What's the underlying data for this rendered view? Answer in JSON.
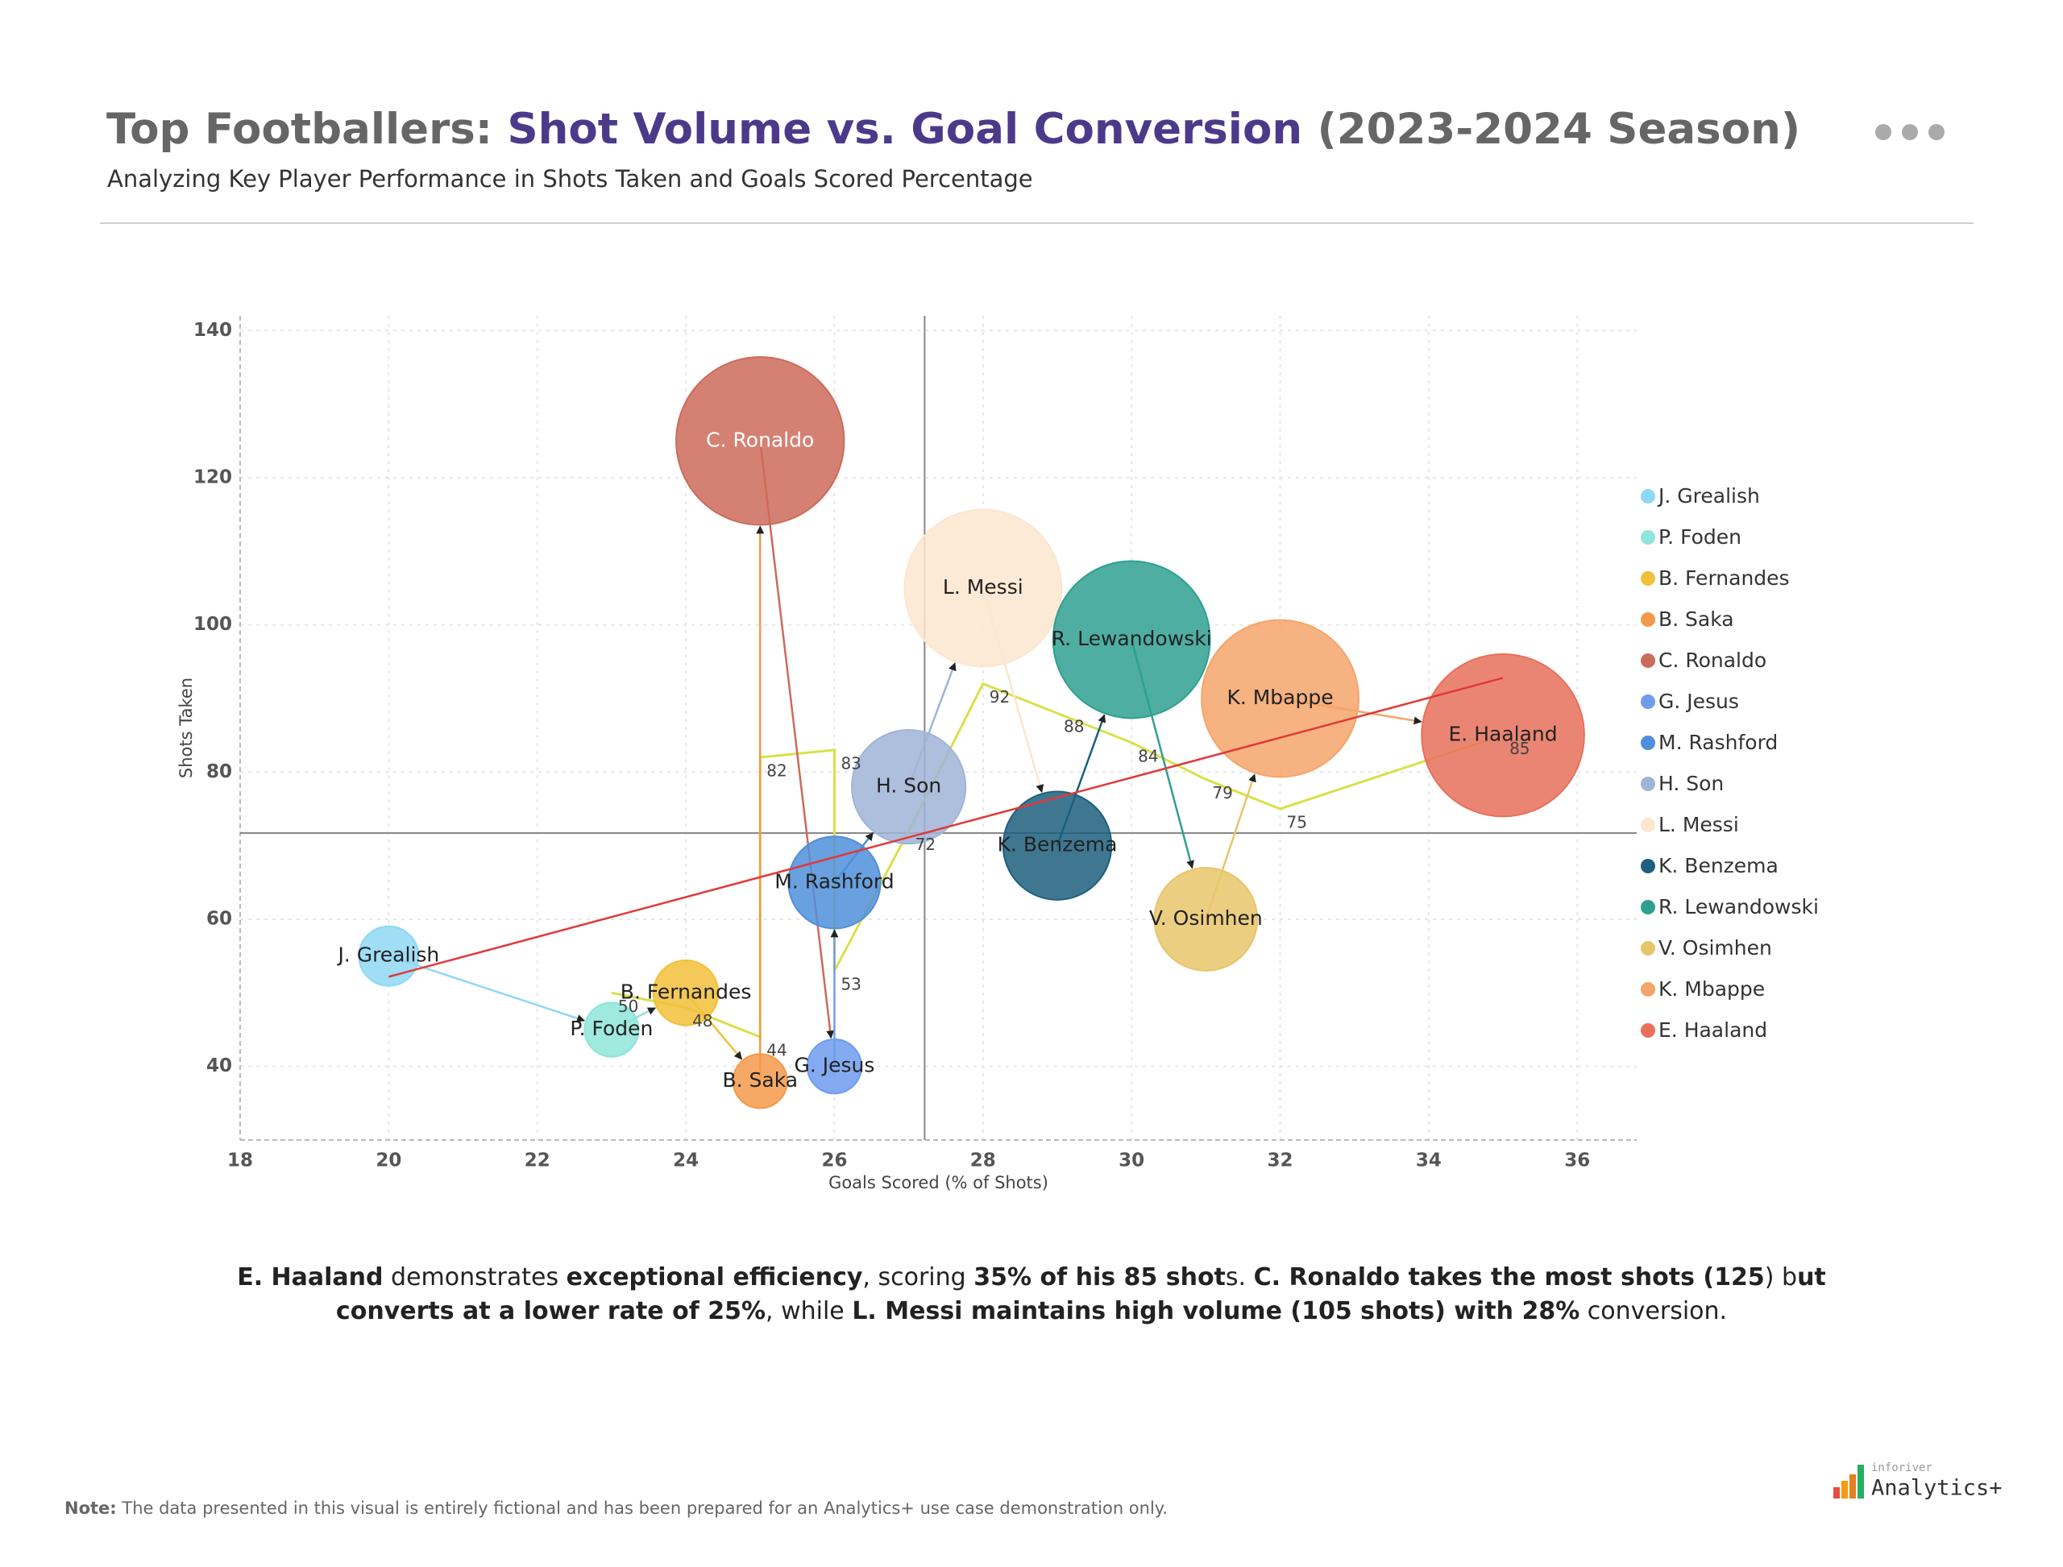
{
  "chart_data": {
    "type": "bubble",
    "title_parts": [
      {
        "text": "Top Footballers: ",
        "color": "#666666"
      },
      {
        "text": "Shot Volume vs. Goal Conversion",
        "color": "#4b3a8a"
      },
      {
        "text": " (2023-2024 Season)",
        "color": "#666666"
      }
    ],
    "subtitle": "Analyzing Key Player Performance in Shots Taken and Goals Scored Percentage",
    "x_label": "Goals Scored (% of Shots)",
    "y_label": "Shots Taken",
    "xlim": [
      18,
      36.8
    ],
    "ylim": [
      30,
      142
    ],
    "xticks": [
      18,
      20,
      22,
      24,
      26,
      28,
      30,
      32,
      34,
      36
    ],
    "yticks": [
      40,
      60,
      80,
      100,
      120,
      140
    ],
    "grid": true,
    "series": [
      {
        "name": "J. Grealish",
        "color": "#8fd8f5",
        "x": [
          20
        ],
        "values": [
          55
        ],
        "sizes": [
          11
        ]
      },
      {
        "name": "P. Foden",
        "color": "#8ee5d8",
        "x": [
          23
        ],
        "values": [
          45
        ],
        "sizes": [
          10
        ]
      },
      {
        "name": "B. Fernandes",
        "color": "#f2c03a",
        "x": [
          24
        ],
        "values": [
          50
        ],
        "sizes": [
          12
        ]
      },
      {
        "name": "B. Saka",
        "color": "#f39a4a",
        "x": [
          25
        ],
        "values": [
          38
        ],
        "sizes": [
          10
        ]
      },
      {
        "name": "C. Ronaldo",
        "color": "#cc6b5a",
        "x": [
          25
        ],
        "values": [
          125
        ],
        "sizes": [
          31
        ]
      },
      {
        "name": "G. Jesus",
        "color": "#6e9cef",
        "x": [
          26
        ],
        "values": [
          40
        ],
        "sizes": [
          10
        ]
      },
      {
        "name": "M. Rashford",
        "color": "#4f8fdb",
        "x": [
          26
        ],
        "values": [
          65
        ],
        "sizes": [
          17
        ]
      },
      {
        "name": "H. Son",
        "color": "#9fb4d6",
        "x": [
          27
        ],
        "values": [
          78
        ],
        "sizes": [
          21
        ]
      },
      {
        "name": "L. Messi",
        "color": "#fbe6cf",
        "x": [
          28
        ],
        "values": [
          105
        ],
        "sizes": [
          29
        ]
      },
      {
        "name": "K. Benzema",
        "color": "#1d5f7e",
        "x": [
          29
        ],
        "values": [
          70
        ],
        "sizes": [
          20
        ]
      },
      {
        "name": "R. Lewandowski",
        "color": "#2fa090",
        "x": [
          30
        ],
        "values": [
          98
        ],
        "sizes": [
          29
        ]
      },
      {
        "name": "V. Osimhen",
        "color": "#e8c56a",
        "x": [
          31
        ],
        "values": [
          60
        ],
        "sizes": [
          19
        ]
      },
      {
        "name": "K. Mbappe",
        "color": "#f4a56a",
        "x": [
          32
        ],
        "values": [
          90
        ],
        "sizes": [
          29
        ]
      },
      {
        "name": "E. Haaland",
        "color": "#e8705a",
        "x": [
          35
        ],
        "values": [
          85
        ],
        "sizes": [
          30
        ]
      }
    ],
    "moving_line": {
      "color": "#d9e04a",
      "x": [
        23,
        24,
        25,
        25,
        26,
        26,
        27,
        28,
        29,
        30,
        31,
        32,
        35
      ],
      "values": [
        50,
        48,
        44,
        82,
        83,
        53,
        72,
        92,
        88,
        84,
        79,
        75,
        85
      ]
    },
    "trend_color": "#e0393a",
    "summary": [
      {
        "text": "E. Haaland",
        "bold": true
      },
      {
        "text": " demonstrates ",
        "bold": false
      },
      {
        "text": "exceptional efficiency",
        "bold": true
      },
      {
        "text": ", scoring ",
        "bold": false
      },
      {
        "text": "35% of his 85 shot",
        "bold": true
      },
      {
        "text": "s. ",
        "bold": false
      },
      {
        "text": "C. Ronaldo takes the most shots (125",
        "bold": true
      },
      {
        "text": ") b",
        "bold": false
      },
      {
        "text": "ut converts at a lower rate of 25%",
        "bold": true
      },
      {
        "text": ", while ",
        "bold": false
      },
      {
        "text": "L. Messi maintains high volume (105 shots) with 28%",
        "bold": true
      },
      {
        "text": " conversion.",
        "bold": false
      }
    ]
  },
  "note": {
    "label": "Note:",
    "text": " The data presented in this visual is entirely fictional and has been prepared for an Analytics+ use case demonstration only."
  },
  "logo": {
    "small": "inforiver",
    "name": "Analytics+"
  }
}
